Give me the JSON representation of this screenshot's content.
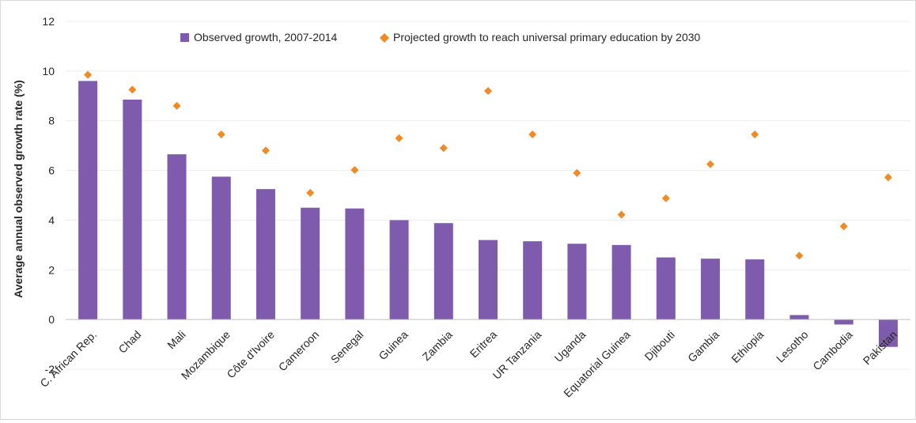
{
  "chart_data": {
    "type": "bar",
    "ylabel": "Average annual observed growth rate (%)",
    "xlabel": "",
    "ylim": [
      -2,
      12
    ],
    "yticks": [
      -2,
      0,
      2,
      4,
      6,
      8,
      10,
      12
    ],
    "grid": true,
    "legend_position": "top-center",
    "categories": [
      "C. African Rep.",
      "Chad",
      "Mali",
      "Mozambique",
      "Côte d'Ivoire",
      "Cameroon",
      "Senegal",
      "Guinea",
      "Zambia",
      "Eritrea",
      "UR Tanzania",
      "Uganda",
      "Equatorial Guinea",
      "Djibouti",
      "Gambia",
      "Ethiopia",
      "Lesotho",
      "Cambodia",
      "Pakistan"
    ],
    "series": [
      {
        "name": "Observed growth, 2007-2014",
        "type": "bar",
        "color": "#7f5bad",
        "values": [
          9.6,
          8.85,
          6.65,
          5.75,
          5.25,
          4.5,
          4.47,
          4.0,
          3.88,
          3.2,
          3.15,
          3.05,
          3.0,
          2.5,
          2.45,
          2.42,
          0.18,
          -0.2,
          -1.1
        ]
      },
      {
        "name": "Projected growth to reach universal primary education by 2030",
        "type": "scatter",
        "marker": "diamond",
        "color": "#f08a24",
        "values": [
          9.85,
          9.25,
          8.6,
          7.45,
          6.8,
          5.1,
          6.02,
          7.3,
          6.9,
          9.2,
          7.45,
          5.9,
          4.22,
          4.88,
          6.25,
          7.45,
          2.57,
          3.75,
          5.72
        ]
      }
    ]
  }
}
